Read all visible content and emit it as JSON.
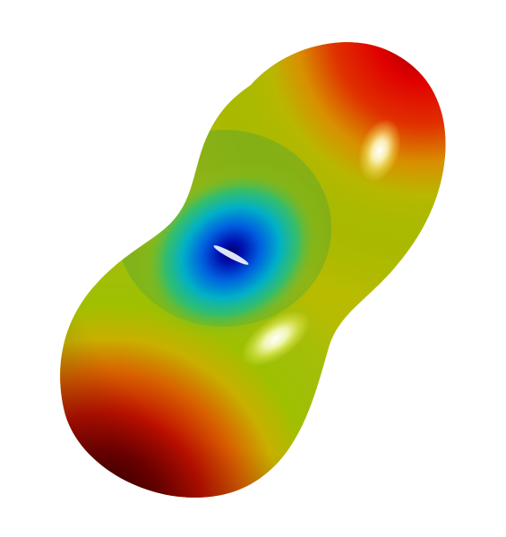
{
  "render": {
    "background": "#ffffff",
    "colormap": [
      "#000080",
      "#0000ff",
      "#00c8c8",
      "#c8c800",
      "#ff0000",
      "#400000"
    ],
    "specular": "#ffffff"
  }
}
